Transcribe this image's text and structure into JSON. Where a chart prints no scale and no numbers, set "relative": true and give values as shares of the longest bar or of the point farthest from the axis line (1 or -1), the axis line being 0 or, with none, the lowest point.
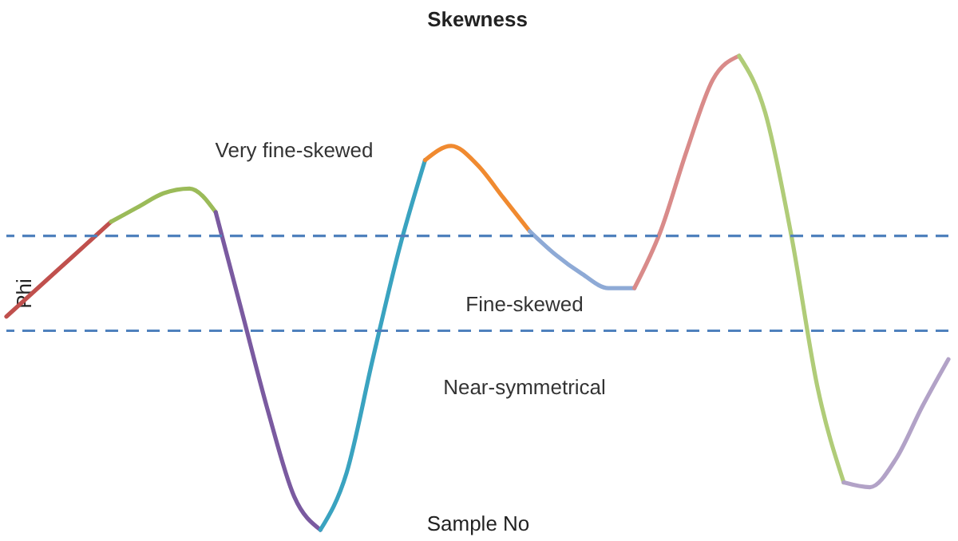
{
  "chart_data": {
    "type": "line",
    "title": "Skewness",
    "xlabel": "Sample No",
    "ylabel": "Phi",
    "relative": true,
    "annotations": [
      "Very fine-skewed",
      "Fine-skewed",
      "Near-symmetrical"
    ],
    "categories": [
      null,
      null,
      null,
      null,
      null,
      null,
      null,
      null,
      null,
      null,
      null,
      null,
      null,
      null,
      null,
      null,
      null,
      null,
      null,
      null,
      null,
      null,
      null,
      null,
      null,
      null,
      null,
      null,
      null,
      null,
      null,
      null,
      null,
      null,
      null,
      null,
      null
    ],
    "series": [
      {
        "color": "#c0504d",
        "values": [
          0.45,
          0.5,
          0.55,
          0.6,
          0.65,
          null,
          null,
          null,
          null,
          null,
          null,
          null,
          null,
          null,
          null,
          null,
          null,
          null,
          null,
          null,
          null,
          null,
          null,
          null,
          null,
          null,
          null,
          null,
          null,
          null,
          null,
          null,
          null,
          null,
          null,
          null,
          null
        ]
      },
      {
        "color": "#9bbb59",
        "values": [
          null,
          null,
          null,
          null,
          0.65,
          0.68,
          0.71,
          0.72,
          0.67,
          null,
          null,
          null,
          null,
          null,
          null,
          null,
          null,
          null,
          null,
          null,
          null,
          null,
          null,
          null,
          null,
          null,
          null,
          null,
          null,
          null,
          null,
          null,
          null,
          null,
          null,
          null,
          null
        ]
      },
      {
        "color": "#7a5aa0",
        "values": [
          null,
          null,
          null,
          null,
          null,
          null,
          null,
          null,
          0.67,
          0.46,
          0.25,
          0.07,
          0,
          null,
          null,
          null,
          null,
          null,
          null,
          null,
          null,
          null,
          null,
          null,
          null,
          null,
          null,
          null,
          null,
          null,
          null,
          null,
          null,
          null,
          null,
          null,
          null
        ]
      },
      {
        "color": "#3aa3c0",
        "values": [
          null,
          null,
          null,
          null,
          null,
          null,
          null,
          null,
          null,
          null,
          null,
          null,
          0,
          0.12,
          0.36,
          0.59,
          0.78,
          null,
          null,
          null,
          null,
          null,
          null,
          null,
          null,
          null,
          null,
          null,
          null,
          null,
          null,
          null,
          null,
          null,
          null,
          null,
          null
        ]
      },
      {
        "color": "#f08a30",
        "values": [
          null,
          null,
          null,
          null,
          null,
          null,
          null,
          null,
          null,
          null,
          null,
          null,
          null,
          null,
          null,
          null,
          0.78,
          0.81,
          0.77,
          0.7,
          0.63,
          null,
          null,
          null,
          null,
          null,
          null,
          null,
          null,
          null,
          null,
          null,
          null,
          null,
          null,
          null,
          null
        ]
      },
      {
        "color": "#8eaad6",
        "values": [
          null,
          null,
          null,
          null,
          null,
          null,
          null,
          null,
          null,
          null,
          null,
          null,
          null,
          null,
          null,
          null,
          null,
          null,
          null,
          null,
          0.63,
          0.58,
          0.54,
          0.51,
          0.51,
          null,
          null,
          null,
          null,
          null,
          null,
          null,
          null,
          null,
          null,
          null,
          null
        ]
      },
      {
        "color": "#d98b8a",
        "values": [
          null,
          null,
          null,
          null,
          null,
          null,
          null,
          null,
          null,
          null,
          null,
          null,
          null,
          null,
          null,
          null,
          null,
          null,
          null,
          null,
          null,
          null,
          null,
          null,
          0.51,
          0.63,
          0.8,
          0.95,
          1,
          null,
          null,
          null,
          null,
          null,
          null,
          null,
          null
        ]
      },
      {
        "color": "#b0cc78",
        "values": [
          null,
          null,
          null,
          null,
          null,
          null,
          null,
          null,
          null,
          null,
          null,
          null,
          null,
          null,
          null,
          null,
          null,
          null,
          null,
          null,
          null,
          null,
          null,
          null,
          null,
          null,
          null,
          null,
          1,
          0.88,
          0.62,
          0.3,
          0.1,
          null,
          null,
          null,
          null
        ]
      },
      {
        "color": "#b2a2c7",
        "values": [
          null,
          null,
          null,
          null,
          null,
          null,
          null,
          null,
          null,
          null,
          null,
          null,
          null,
          null,
          null,
          null,
          null,
          null,
          null,
          null,
          null,
          null,
          null,
          null,
          null,
          null,
          null,
          null,
          null,
          null,
          null,
          null,
          0.1,
          0.09,
          0.15,
          0.26,
          0.36
        ]
      }
    ],
    "ref_lines": [
      {
        "axis": "y",
        "value": 0.62,
        "color": "#4f81bd",
        "line_style": "dashed"
      },
      {
        "axis": "y",
        "value": 0.42,
        "color": "#4f81bd",
        "line_style": "dashed"
      }
    ]
  }
}
